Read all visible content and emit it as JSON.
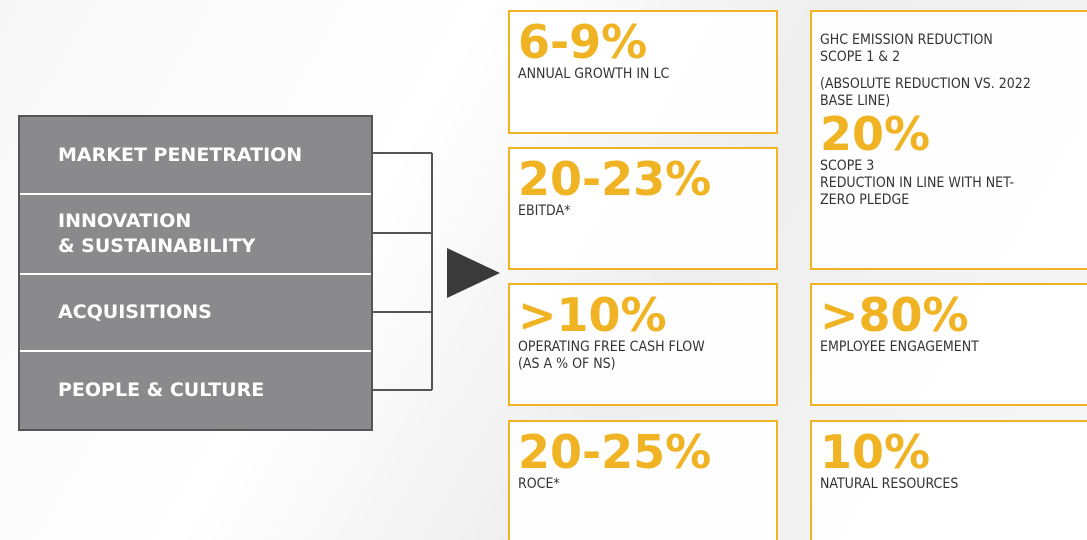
{
  "pillars": [
    [
      "MARKET PENETRATION"
    ],
    [
      "INNOVATION",
      "& SUSTAINABILITY"
    ],
    [
      "ACQUISITIONS"
    ],
    [
      "PEOPLE & CULTURE"
    ]
  ],
  "targets": [
    {
      "value": "6-9%",
      "label": [
        "ANNUAL GROWTH IN LC"
      ]
    },
    {
      "value": "20-23%",
      "label": [
        "EBITDA*"
      ]
    },
    {
      "value": ">10%",
      "label": [
        "OPERATING FREE CASH FLOW",
        "(AS A % OF NS)"
      ]
    },
    {
      "value": "20-25%",
      "label": [
        "ROCE*"
      ]
    },
    {
      "heading": [
        "GHC EMISSION REDUCTION",
        "SCOPE 1 & 2"
      ],
      "note": [
        "(ABSOLUTE REDUCTION VS. 2022",
        "BASE LINE)"
      ],
      "value": "20%",
      "label": [
        "SCOPE 3",
        "REDUCTION IN LINE WITH NET-",
        "ZERO PLEDGE"
      ]
    },
    {
      "value": ">80%",
      "label": [
        "EMPLOYEE ENGAGEMENT"
      ]
    },
    {
      "value": "10%",
      "label": [
        "NATURAL RESOURCES"
      ]
    }
  ]
}
